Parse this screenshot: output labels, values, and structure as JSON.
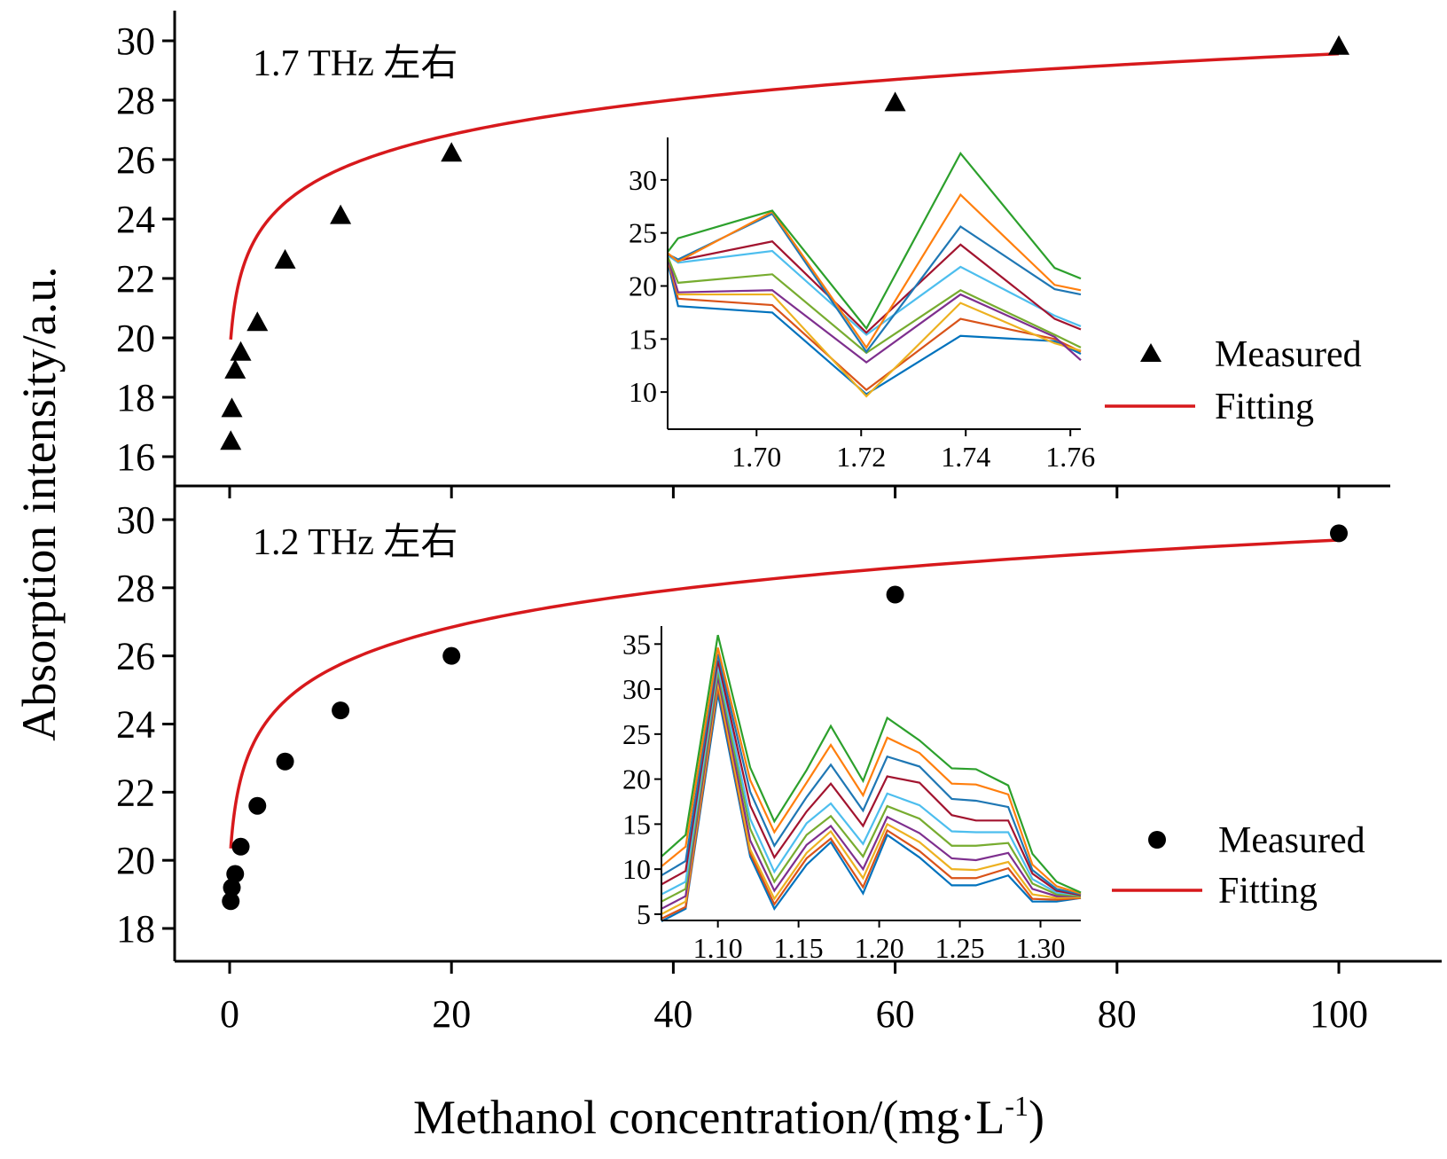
{
  "chart_data": {
    "type": "scatter",
    "xlabel": "Methanol concentration/(mg·L",
    "xlabel_sup": "-1",
    "xlabel_end": ")",
    "ylabel": "Absorption intensity/a.u.",
    "xlim": [
      -5,
      105
    ],
    "xticks": [
      "0",
      "20",
      "40",
      "60",
      "80",
      "100"
    ],
    "panels": [
      {
        "annotation": "1.7 THz 左右",
        "ylim": [
          15,
          31
        ],
        "yticks": [
          "16",
          "18",
          "20",
          "22",
          "24",
          "26",
          "28",
          "30"
        ],
        "marker": "triangle",
        "measured": {
          "x": [
            0.1,
            0.2,
            0.5,
            1,
            2.5,
            5,
            10,
            20,
            60,
            100
          ],
          "y": [
            16.5,
            17.6,
            18.9,
            19.5,
            20.5,
            22.6,
            24.1,
            26.2,
            27.9,
            29.8
          ]
        },
        "fit": {
          "a": 21.73,
          "b": 1.7,
          "c": 0.25
        },
        "legend": {
          "measured": "Measured",
          "fitting": "Fitting"
        },
        "inset": {
          "xlim": [
            1.683,
            1.762
          ],
          "ylim": [
            6.5,
            34
          ],
          "xticks": [
            "1.70",
            "1.72",
            "1.74",
            "1.76"
          ],
          "yticks": [
            "10",
            "15",
            "20",
            "25",
            "30"
          ],
          "x": [
            1.683,
            1.685,
            1.703,
            1.721,
            1.739,
            1.757,
            1.762
          ],
          "colors": [
            "#0072BD",
            "#D95319",
            "#EDB120",
            "#7E2F8E",
            "#77AC30",
            "#4DBEEE",
            "#A2142F",
            "#1F77B4",
            "#FF7F0E",
            "#2CA02C"
          ],
          "series": [
            [
              22.3,
              18.1,
              17.5,
              9.8,
              15.3,
              14.8,
              13.6
            ],
            [
              22.5,
              18.8,
              18.2,
              10.2,
              16.9,
              15.0,
              13.8
            ],
            [
              22.6,
              19.2,
              19.2,
              9.6,
              18.4,
              14.6,
              13.9
            ],
            [
              22.7,
              19.4,
              19.6,
              12.8,
              19.2,
              15.2,
              13.0
            ],
            [
              22.8,
              20.3,
              21.1,
              13.7,
              19.6,
              15.4,
              14.2
            ],
            [
              22.9,
              22.2,
              23.3,
              15.4,
              21.8,
              17.2,
              16.2
            ],
            [
              23.0,
              22.4,
              24.2,
              15.6,
              23.9,
              16.9,
              15.9
            ],
            [
              23.0,
              22.5,
              26.8,
              13.8,
              25.6,
              19.7,
              19.2
            ],
            [
              23.1,
              22.3,
              27.0,
              14.2,
              28.6,
              20.1,
              19.6
            ],
            [
              23.2,
              24.5,
              27.1,
              16.0,
              32.5,
              21.7,
              20.7
            ]
          ]
        }
      },
      {
        "annotation": "1.2 THz 左右",
        "ylim": [
          17,
          31.2
        ],
        "yticks": [
          "18",
          "20",
          "22",
          "24",
          "26",
          "28",
          "30"
        ],
        "marker": "circle",
        "measured": {
          "x": [
            0.1,
            0.2,
            0.5,
            1,
            2.5,
            5,
            10,
            20,
            60,
            100
          ],
          "y": [
            18.8,
            19.2,
            19.6,
            20.4,
            21.6,
            22.9,
            24.4,
            26.0,
            27.8,
            29.6
          ]
        },
        "fit": {
          "a": 22.03,
          "b": 1.6,
          "c": 0.25
        },
        "legend": {
          "measured": "Measured",
          "fitting": "Fitting"
        },
        "inset": {
          "xlim": [
            1.065,
            1.325
          ],
          "ylim": [
            4.3,
            37
          ],
          "xticks": [
            "1.10",
            "1.15",
            "1.20",
            "1.25",
            "1.30"
          ],
          "yticks": [
            "5",
            "10",
            "15",
            "20",
            "25",
            "30",
            "35"
          ],
          "x": [
            1.065,
            1.08,
            1.1,
            1.12,
            1.135,
            1.155,
            1.17,
            1.19,
            1.205,
            1.225,
            1.245,
            1.26,
            1.28,
            1.295,
            1.31,
            1.325
          ],
          "colors": [
            "#0072BD",
            "#D95319",
            "#EDB120",
            "#7E2F8E",
            "#77AC30",
            "#4DBEEE",
            "#A2142F",
            "#1F77B4",
            "#FF7F0E",
            "#2CA02C"
          ],
          "series": [
            [
              4.2,
              5.6,
              29.5,
              11.4,
              5.6,
              10.5,
              13.0,
              7.3,
              13.8,
              11.3,
              8.2,
              8.2,
              9.3,
              6.4,
              6.4,
              6.8
            ],
            [
              4.5,
              5.8,
              30.2,
              11.8,
              6.1,
              11.2,
              13.4,
              8.0,
              14.3,
              12.0,
              9.0,
              9.0,
              10.1,
              6.7,
              6.6,
              6.8
            ],
            [
              5.0,
              6.4,
              30.8,
              12.2,
              6.7,
              11.8,
              14.2,
              9.0,
              15.0,
              13.0,
              10.0,
              9.9,
              10.8,
              7.2,
              6.8,
              6.9
            ],
            [
              5.6,
              7.0,
              31.4,
              13.2,
              7.6,
              12.7,
              14.8,
              10.0,
              15.8,
              14.0,
              11.2,
              11.0,
              11.8,
              7.8,
              7.0,
              7.0
            ],
            [
              6.4,
              7.8,
              32.0,
              14.5,
              8.6,
              13.8,
              15.9,
              11.4,
              17.0,
              15.6,
              12.6,
              12.6,
              12.9,
              8.4,
              7.2,
              7.0
            ],
            [
              7.2,
              8.6,
              32.6,
              15.6,
              9.7,
              15.1,
              17.3,
              12.8,
              18.4,
              17.1,
              14.2,
              14.1,
              14.1,
              8.9,
              7.4,
              7.1
            ],
            [
              8.3,
              9.8,
              33.2,
              17.1,
              11.3,
              16.4,
              19.5,
              14.8,
              20.3,
              19.6,
              16.0,
              15.4,
              15.4,
              9.5,
              7.6,
              7.1
            ],
            [
              9.3,
              10.9,
              33.9,
              18.6,
              12.6,
              18.0,
              21.6,
              16.5,
              22.5,
              21.4,
              17.8,
              17.6,
              16.9,
              9.9,
              7.8,
              7.2
            ],
            [
              10.3,
              12.5,
              34.6,
              19.9,
              14.1,
              19.6,
              23.8,
              18.2,
              24.6,
              22.9,
              19.5,
              19.4,
              18.3,
              10.5,
              8.1,
              7.3
            ],
            [
              11.4,
              13.8,
              36.0,
              21.3,
              15.3,
              21.0,
              25.9,
              19.8,
              26.8,
              24.3,
              21.2,
              21.1,
              19.3,
              11.7,
              8.6,
              7.4
            ]
          ]
        }
      }
    ]
  }
}
